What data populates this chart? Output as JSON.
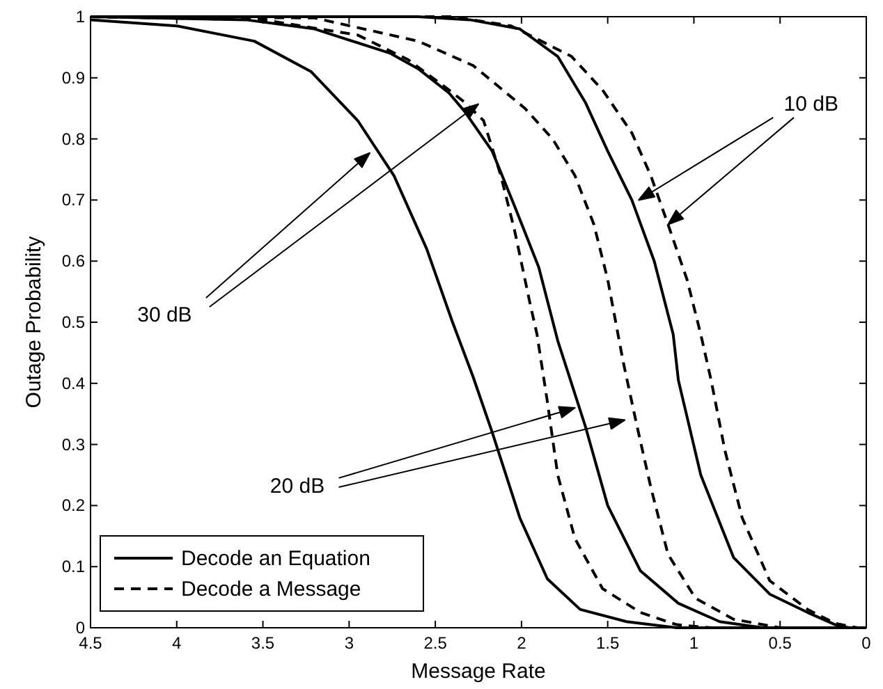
{
  "chart_data": {
    "type": "line",
    "xlabel": "Message Rate",
    "ylabel": "Outage Probability",
    "xlim": [
      4.5,
      0
    ],
    "xticks": [
      4.5,
      4,
      3.5,
      3,
      2.5,
      2,
      1.5,
      1,
      0.5,
      0
    ],
    "ylim": [
      0,
      1
    ],
    "yticks": [
      0,
      0.1,
      0.2,
      0.3,
      0.4,
      0.5,
      0.6,
      0.7,
      0.8,
      0.9,
      1
    ],
    "grid": false,
    "legend": "bottom left",
    "marker": "none",
    "annotations": [
      "30 dB",
      "20 dB",
      {
        "text": "10 dB",
        "x": 1.15,
        "y": 0.66
      }
    ],
    "series": [
      {
        "name": "Decode an Equation",
        "color": "#000000",
        "line_style": "solid",
        "x": [
          4.5,
          4.0,
          3.55,
          3.22,
          2.95,
          2.74,
          2.55,
          2.4,
          2.28,
          2.17,
          2.01,
          1.85,
          1.66,
          1.39,
          1.1,
          0
        ],
        "values": [
          0.995,
          0.985,
          0.96,
          0.91,
          0.83,
          0.74,
          0.62,
          0.5,
          0.41,
          0.32,
          0.18,
          0.08,
          0.03,
          0.01,
          0,
          0
        ]
      },
      {
        "name": "Decode a Message",
        "color": "#000000",
        "line_style": "dashed",
        "x": [
          4.5,
          3.5,
          2.95,
          2.66,
          2.42,
          2.33,
          2.22,
          2.12,
          2.04,
          1.95,
          1.91,
          1.85,
          1.79,
          1.69,
          1.53,
          1.31,
          1.1,
          0.9
        ],
        "values": [
          1,
          0.995,
          0.97,
          0.93,
          0.88,
          0.86,
          0.83,
          0.74,
          0.65,
          0.53,
          0.48,
          0.37,
          0.25,
          0.146,
          0.064,
          0.025,
          0.005,
          0
        ]
      },
      {
        "color": "#000000",
        "line_style": "solid",
        "x": [
          4.5,
          3.6,
          3.2,
          2.76,
          2.6,
          2.42,
          2.33,
          2.17,
          2.04,
          1.9,
          1.79,
          1.63,
          1.5,
          1.31,
          1.09,
          0.85,
          0.6
        ],
        "values": [
          1,
          0.995,
          0.98,
          0.94,
          0.915,
          0.875,
          0.845,
          0.78,
          0.69,
          0.59,
          0.47,
          0.33,
          0.2,
          0.093,
          0.04,
          0.01,
          0
        ]
      },
      {
        "color": "#000000",
        "line_style": "dashed",
        "x": [
          4.5,
          3.2,
          2.6,
          2.28,
          1.98,
          1.82,
          1.69,
          1.58,
          1.5,
          1.44,
          1.41,
          1.33,
          1.25,
          1.15,
          0.99,
          0.77,
          0.5
        ],
        "values": [
          1,
          0.998,
          0.96,
          0.92,
          0.85,
          0.8,
          0.74,
          0.66,
          0.57,
          0.48,
          0.435,
          0.33,
          0.23,
          0.12,
          0.048,
          0.014,
          0
        ]
      },
      {
        "color": "#000000",
        "line_style": "solid",
        "x": [
          4.5,
          2.6,
          2.3,
          2.01,
          1.79,
          1.63,
          1.5,
          1.36,
          1.23,
          1.12,
          1.09,
          0.96,
          0.77,
          0.56,
          0.34,
          0.18,
          0.1,
          0
        ],
        "values": [
          1,
          1,
          0.995,
          0.98,
          0.935,
          0.86,
          0.78,
          0.7,
          0.6,
          0.48,
          0.405,
          0.25,
          0.115,
          0.055,
          0.025,
          0.005,
          0,
          0
        ]
      },
      {
        "color": "#000000",
        "line_style": "dashed",
        "x": [
          4.5,
          2.4,
          2.06,
          1.71,
          1.53,
          1.36,
          1.25,
          1.15,
          1.04,
          0.96,
          0.9,
          0.82,
          0.72,
          0.56,
          0.34,
          0.18,
          0.05
        ],
        "values": [
          1,
          1,
          0.985,
          0.935,
          0.88,
          0.81,
          0.74,
          0.66,
          0.57,
          0.48,
          0.405,
          0.29,
          0.18,
          0.077,
          0.03,
          0.007,
          0
        ]
      }
    ]
  }
}
